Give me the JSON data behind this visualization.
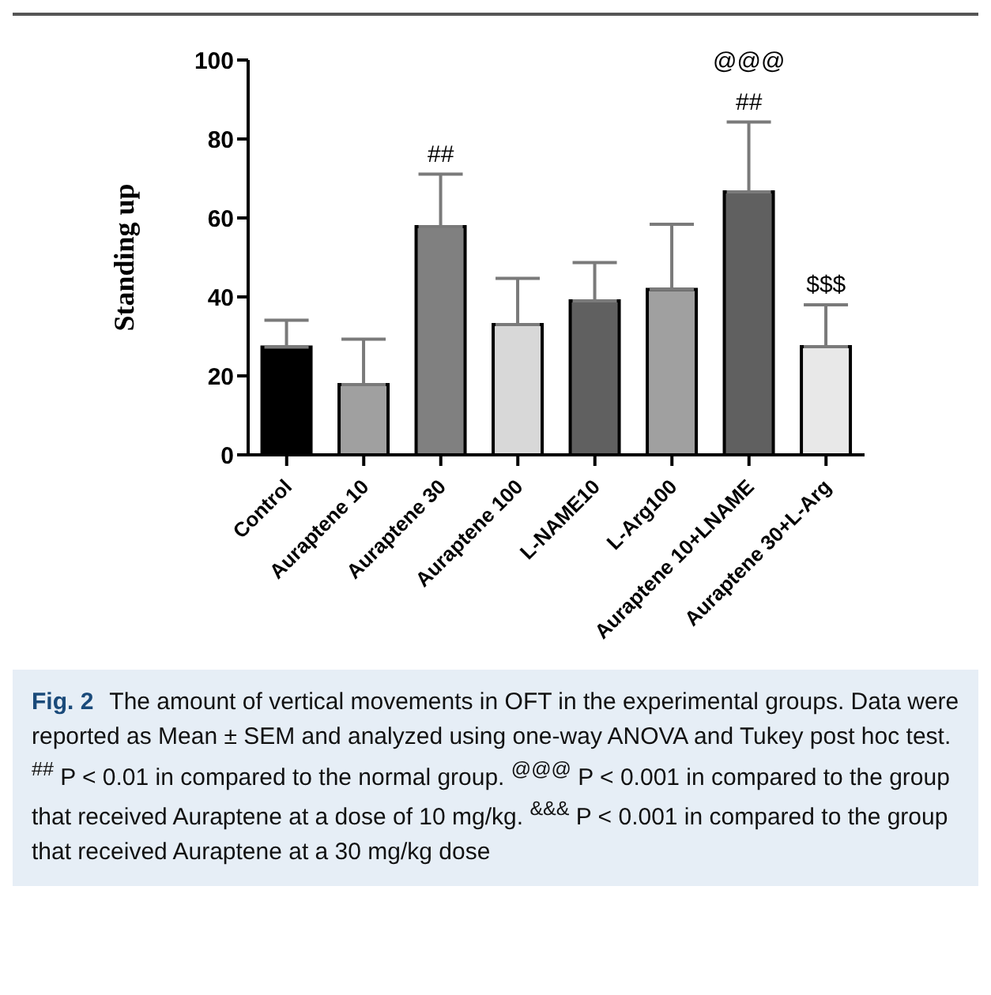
{
  "chart_data": {
    "type": "bar",
    "ylabel": "Standing up",
    "categories": [
      "Control",
      "Auraptene 10",
      "Auraptene 30",
      "Auraptene 100",
      "L-NAME10",
      "L-Arg100",
      "Auraptene 10+LNAME",
      "Auraptene 30+L-Arg"
    ],
    "values": [
      27.3,
      17.8,
      57.8,
      33.0,
      39.0,
      41.9,
      66.6,
      27.4
    ],
    "errors": [
      6.8,
      11.5,
      13.3,
      11.7,
      9.7,
      16.5,
      17.7,
      10.6
    ],
    "colors": [
      "#000000",
      "#a0a0a0",
      "#808080",
      "#d8d8d8",
      "#606060",
      "#a0a0a0",
      "#606060",
      "#e8e8e8"
    ],
    "ylim": [
      0,
      100
    ],
    "yticks": [
      0,
      20,
      40,
      60,
      80,
      100
    ],
    "annotations": [
      {
        "text": "##",
        "x": "Auraptene 30",
        "y": 71.1
      },
      {
        "text": "##",
        "x": "Auraptene 10+LNAME",
        "y": 84.3
      },
      {
        "text": "@@@",
        "x": "Auraptene 10+LNAME",
        "y": 84.3
      },
      {
        "text": "$$$",
        "x": "Auraptene 30+L-Arg",
        "y": 38.0
      },
      "Fig. 2",
      "The amount of vertical movements in OFT in the experimental groups. Data were reported as Mean ± SEM and analyzed using one-way ANOVA and Tukey post hoc test. $^{##}$ P < 0.01 in compared to the normal group. $^{@@@}$ P < 0.001 in compared to the group that received Auraptene at a dose of 10 mg/kg. $^{&&&}$ P < 0.001 in compared to the group that received Auraptene at a 30 mg/kg dose"
    ]
  }
}
